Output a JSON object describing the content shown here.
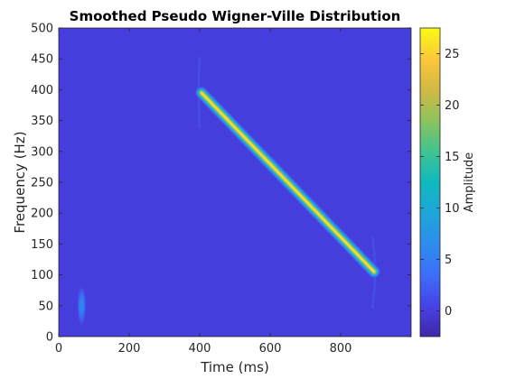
{
  "chart_data": {
    "type": "heatmap",
    "title": "Smoothed Pseudo Wigner-Ville Distribution",
    "xlabel": "Time (ms)",
    "ylabel": "Frequency (Hz)",
    "xlim": [
      0,
      1000
    ],
    "ylim": [
      0,
      500
    ],
    "x_ticks": [
      0,
      200,
      400,
      600,
      800
    ],
    "y_ticks": [
      0,
      50,
      100,
      150,
      200,
      250,
      300,
      350,
      400,
      450,
      500
    ],
    "colormap": "parula",
    "colorbar": {
      "label": "Amplitude",
      "limits": [
        -2.5,
        27.5
      ],
      "ticks": [
        0,
        5,
        10,
        15,
        20,
        25
      ]
    },
    "background_value": 0,
    "components": [
      {
        "kind": "gaussian-pulse",
        "time_ms": 65,
        "frequency_hz": 50,
        "peak_amplitude": 8
      },
      {
        "kind": "linear-chirp",
        "start_time_ms": 405,
        "end_time_ms": 895,
        "start_frequency_hz": 395,
        "end_frequency_hz": 105,
        "peak_amplitude": 27
      }
    ],
    "grid": false
  }
}
